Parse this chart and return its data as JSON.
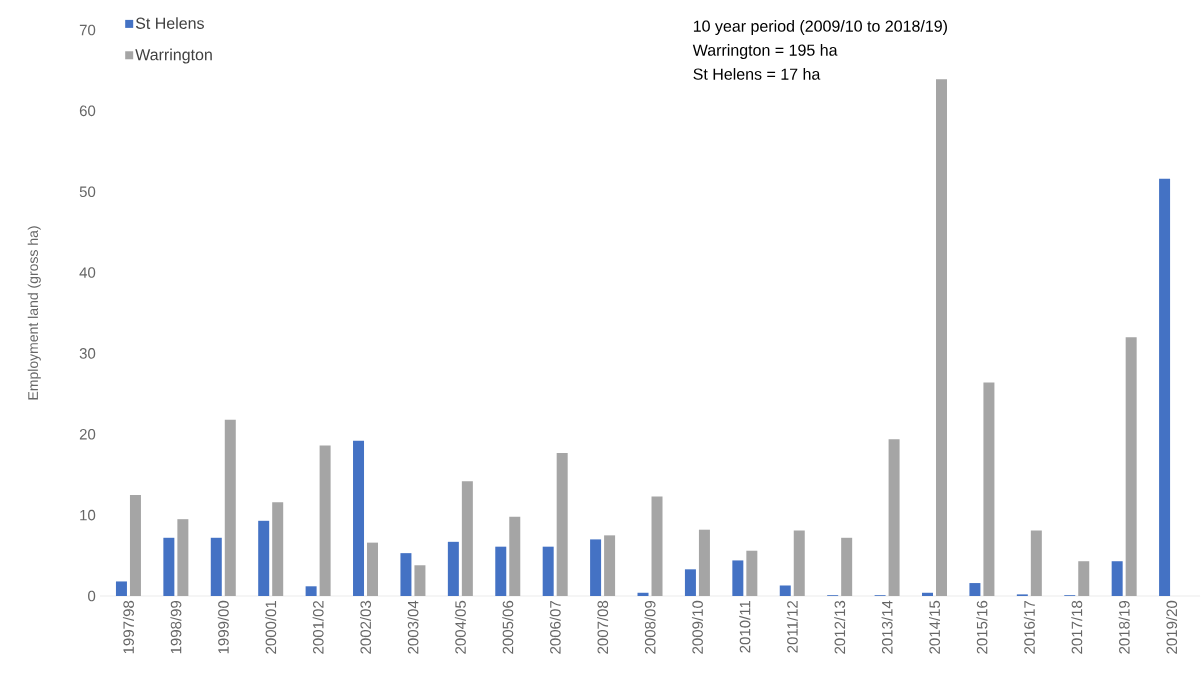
{
  "chart_data": {
    "type": "bar",
    "ylabel": "Employment land (gross ha)",
    "categories": [
      "1997/98",
      "1998/99",
      "1999/00",
      "2000/01",
      "2001/02",
      "2002/03",
      "2003/04",
      "2004/05",
      "2005/06",
      "2006/07",
      "2007/08",
      "2008/09",
      "2009/10",
      "2010/11",
      "2011/12",
      "2012/13",
      "2013/14",
      "2014/15",
      "2015/16",
      "2016/17",
      "2017/18",
      "2018/19",
      "2019/20"
    ],
    "series": [
      {
        "name": "St Helens",
        "color": "#4472c4",
        "values": [
          1.8,
          7.2,
          7.2,
          9.3,
          1.2,
          19.2,
          5.3,
          6.7,
          6.1,
          6.1,
          7.0,
          0.4,
          3.3,
          4.4,
          1.3,
          0.1,
          0.1,
          0.4,
          1.6,
          0.2,
          0.1,
          4.3,
          51.6
        ]
      },
      {
        "name": "Warrington",
        "color": "#a5a5a5",
        "values": [
          12.5,
          9.5,
          21.8,
          11.6,
          18.6,
          6.6,
          3.8,
          14.2,
          9.8,
          17.7,
          7.5,
          12.3,
          8.2,
          5.6,
          8.1,
          7.2,
          19.4,
          63.9,
          26.4,
          8.1,
          4.3,
          32.0,
          null
        ]
      }
    ],
    "ylim": [
      0,
      70
    ],
    "yticks": [
      0,
      10,
      20,
      30,
      40,
      50,
      60,
      70
    ],
    "legend": "top left",
    "grid": false,
    "annotations": [
      "10 year period (2009/10 to 2018/19)",
      "Warrington = 195 ha",
      "St Helens = 17 ha"
    ]
  }
}
